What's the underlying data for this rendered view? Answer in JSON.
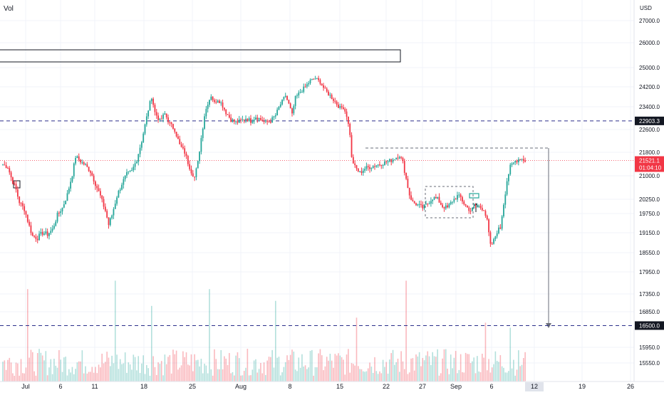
{
  "header": {
    "vol_label": "Vol"
  },
  "price_axis": {
    "currency": "USD",
    "ticks": [
      "27000.0",
      "26000.0",
      "25000.0",
      "24200.0",
      "23400.0",
      "22600.0",
      "21800.0",
      "21000.0",
      "20250.0",
      "19750.0",
      "19150.0",
      "18550.0",
      "17950.0",
      "17350.0",
      "16850.0",
      "15950.0",
      "15550.0"
    ]
  },
  "badges": {
    "level_high": {
      "text": "22903.3",
      "color": "#131722"
    },
    "last_price": {
      "text": "21521.1",
      "countdown": "01:04:10",
      "color": "#f23645"
    },
    "target": {
      "text": "16500.0",
      "color": "#131722"
    }
  },
  "time_axis": {
    "labels": [
      "Jul",
      "6",
      "11",
      "18",
      "25",
      "Aug",
      "8",
      "15",
      "22",
      "27",
      "Sep",
      "6",
      "12",
      "19",
      "26"
    ],
    "highlighted": "12"
  },
  "colors": {
    "up": "#26a69a",
    "down": "#f23645",
    "dashed_level": "#2b2f8a",
    "grid": "#f0f3fa",
    "axis_text": "#131722"
  },
  "chart_data": {
    "type": "candlestick",
    "symbol_unit": "USD",
    "ylim": [
      15400,
      27600
    ],
    "x_labels": [
      "Jul",
      "6",
      "11",
      "18",
      "25",
      "Aug",
      "8",
      "15",
      "22",
      "27",
      "Sep",
      "6",
      "12",
      "19",
      "26"
    ],
    "horizontal_levels": [
      22903.3,
      16500.0
    ],
    "last_price": 21521.1,
    "series": [
      {
        "name": "Price",
        "anchors": [
          [
            0,
            21380
          ],
          [
            3,
            21300
          ],
          [
            5,
            20950
          ],
          [
            8,
            20550
          ],
          [
            10,
            20150
          ],
          [
            13,
            19900
          ],
          [
            16,
            19350
          ],
          [
            18,
            19050
          ],
          [
            21,
            19000
          ],
          [
            24,
            19150
          ],
          [
            27,
            19100
          ],
          [
            30,
            19250
          ],
          [
            33,
            19700
          ],
          [
            36,
            19950
          ],
          [
            39,
            20400
          ],
          [
            42,
            21050
          ],
          [
            44,
            21650
          ],
          [
            47,
            21500
          ],
          [
            50,
            21350
          ],
          [
            53,
            21150
          ],
          [
            56,
            20750
          ],
          [
            59,
            20350
          ],
          [
            62,
            19850
          ],
          [
            64,
            19400
          ],
          [
            66,
            19700
          ],
          [
            69,
            20350
          ],
          [
            72,
            20750
          ],
          [
            75,
            21050
          ],
          [
            78,
            21150
          ],
          [
            81,
            21550
          ],
          [
            84,
            22200
          ],
          [
            86,
            22750
          ],
          [
            88,
            23300
          ],
          [
            90,
            23800
          ],
          [
            92,
            23200
          ],
          [
            95,
            22900
          ],
          [
            98,
            23150
          ],
          [
            101,
            22800
          ],
          [
            104,
            22600
          ],
          [
            107,
            22050
          ],
          [
            110,
            21800
          ],
          [
            112,
            21450
          ],
          [
            114,
            21150
          ],
          [
            116,
            20950
          ],
          [
            118,
            21450
          ],
          [
            120,
            22300
          ],
          [
            122,
            23100
          ],
          [
            124,
            23550
          ],
          [
            126,
            23850
          ],
          [
            128,
            23550
          ],
          [
            130,
            23700
          ],
          [
            132,
            23550
          ],
          [
            135,
            23200
          ],
          [
            138,
            22950
          ],
          [
            141,
            22850
          ],
          [
            144,
            22900
          ],
          [
            147,
            23000
          ],
          [
            150,
            22900
          ],
          [
            153,
            23050
          ],
          [
            156,
            22950
          ],
          [
            159,
            22850
          ],
          [
            162,
            22900
          ],
          [
            165,
            23100
          ],
          [
            168,
            23500
          ],
          [
            171,
            23850
          ],
          [
            173,
            23500
          ],
          [
            175,
            23100
          ],
          [
            177,
            23750
          ],
          [
            180,
            24000
          ],
          [
            183,
            24200
          ],
          [
            186,
            24450
          ],
          [
            189,
            24550
          ],
          [
            192,
            24400
          ],
          [
            195,
            24050
          ],
          [
            198,
            23850
          ],
          [
            201,
            23600
          ],
          [
            204,
            23350
          ],
          [
            206,
            23400
          ],
          [
            208,
            23100
          ],
          [
            210,
            22450
          ],
          [
            211,
            21600
          ],
          [
            213,
            21300
          ],
          [
            216,
            21100
          ],
          [
            219,
            21250
          ],
          [
            222,
            21300
          ],
          [
            225,
            21350
          ],
          [
            228,
            21400
          ],
          [
            231,
            21450
          ],
          [
            234,
            21500
          ],
          [
            237,
            21600
          ],
          [
            240,
            21700
          ],
          [
            242,
            21450
          ],
          [
            244,
            20900
          ],
          [
            246,
            20400
          ],
          [
            248,
            20150
          ],
          [
            251,
            20050
          ],
          [
            254,
            19950
          ],
          [
            257,
            20100
          ],
          [
            260,
            20300
          ],
          [
            263,
            20250
          ],
          [
            266,
            20000
          ],
          [
            269,
            19950
          ],
          [
            272,
            20200
          ],
          [
            275,
            20350
          ],
          [
            277,
            20300
          ],
          [
            279,
            20100
          ],
          [
            281,
            19950
          ],
          [
            283,
            19850
          ],
          [
            285,
            19950
          ],
          [
            288,
            20000
          ],
          [
            291,
            19900
          ],
          [
            293,
            19500
          ],
          [
            295,
            18750
          ],
          [
            297,
            18900
          ],
          [
            299,
            19200
          ],
          [
            301,
            19300
          ],
          [
            303,
            20100
          ],
          [
            305,
            20850
          ],
          [
            307,
            21300
          ],
          [
            310,
            21500
          ],
          [
            313,
            21600
          ],
          [
            316,
            21521
          ]
        ]
      }
    ],
    "volume": {
      "name": "Vol",
      "relative_spikes": [
        [
          15,
          0.55
        ],
        [
          68,
          0.6
        ],
        [
          90,
          0.45
        ],
        [
          125,
          0.55
        ],
        [
          165,
          0.48
        ],
        [
          214,
          0.38
        ],
        [
          244,
          0.6
        ],
        [
          292,
          0.35
        ],
        [
          307,
          0.32
        ]
      ]
    }
  }
}
